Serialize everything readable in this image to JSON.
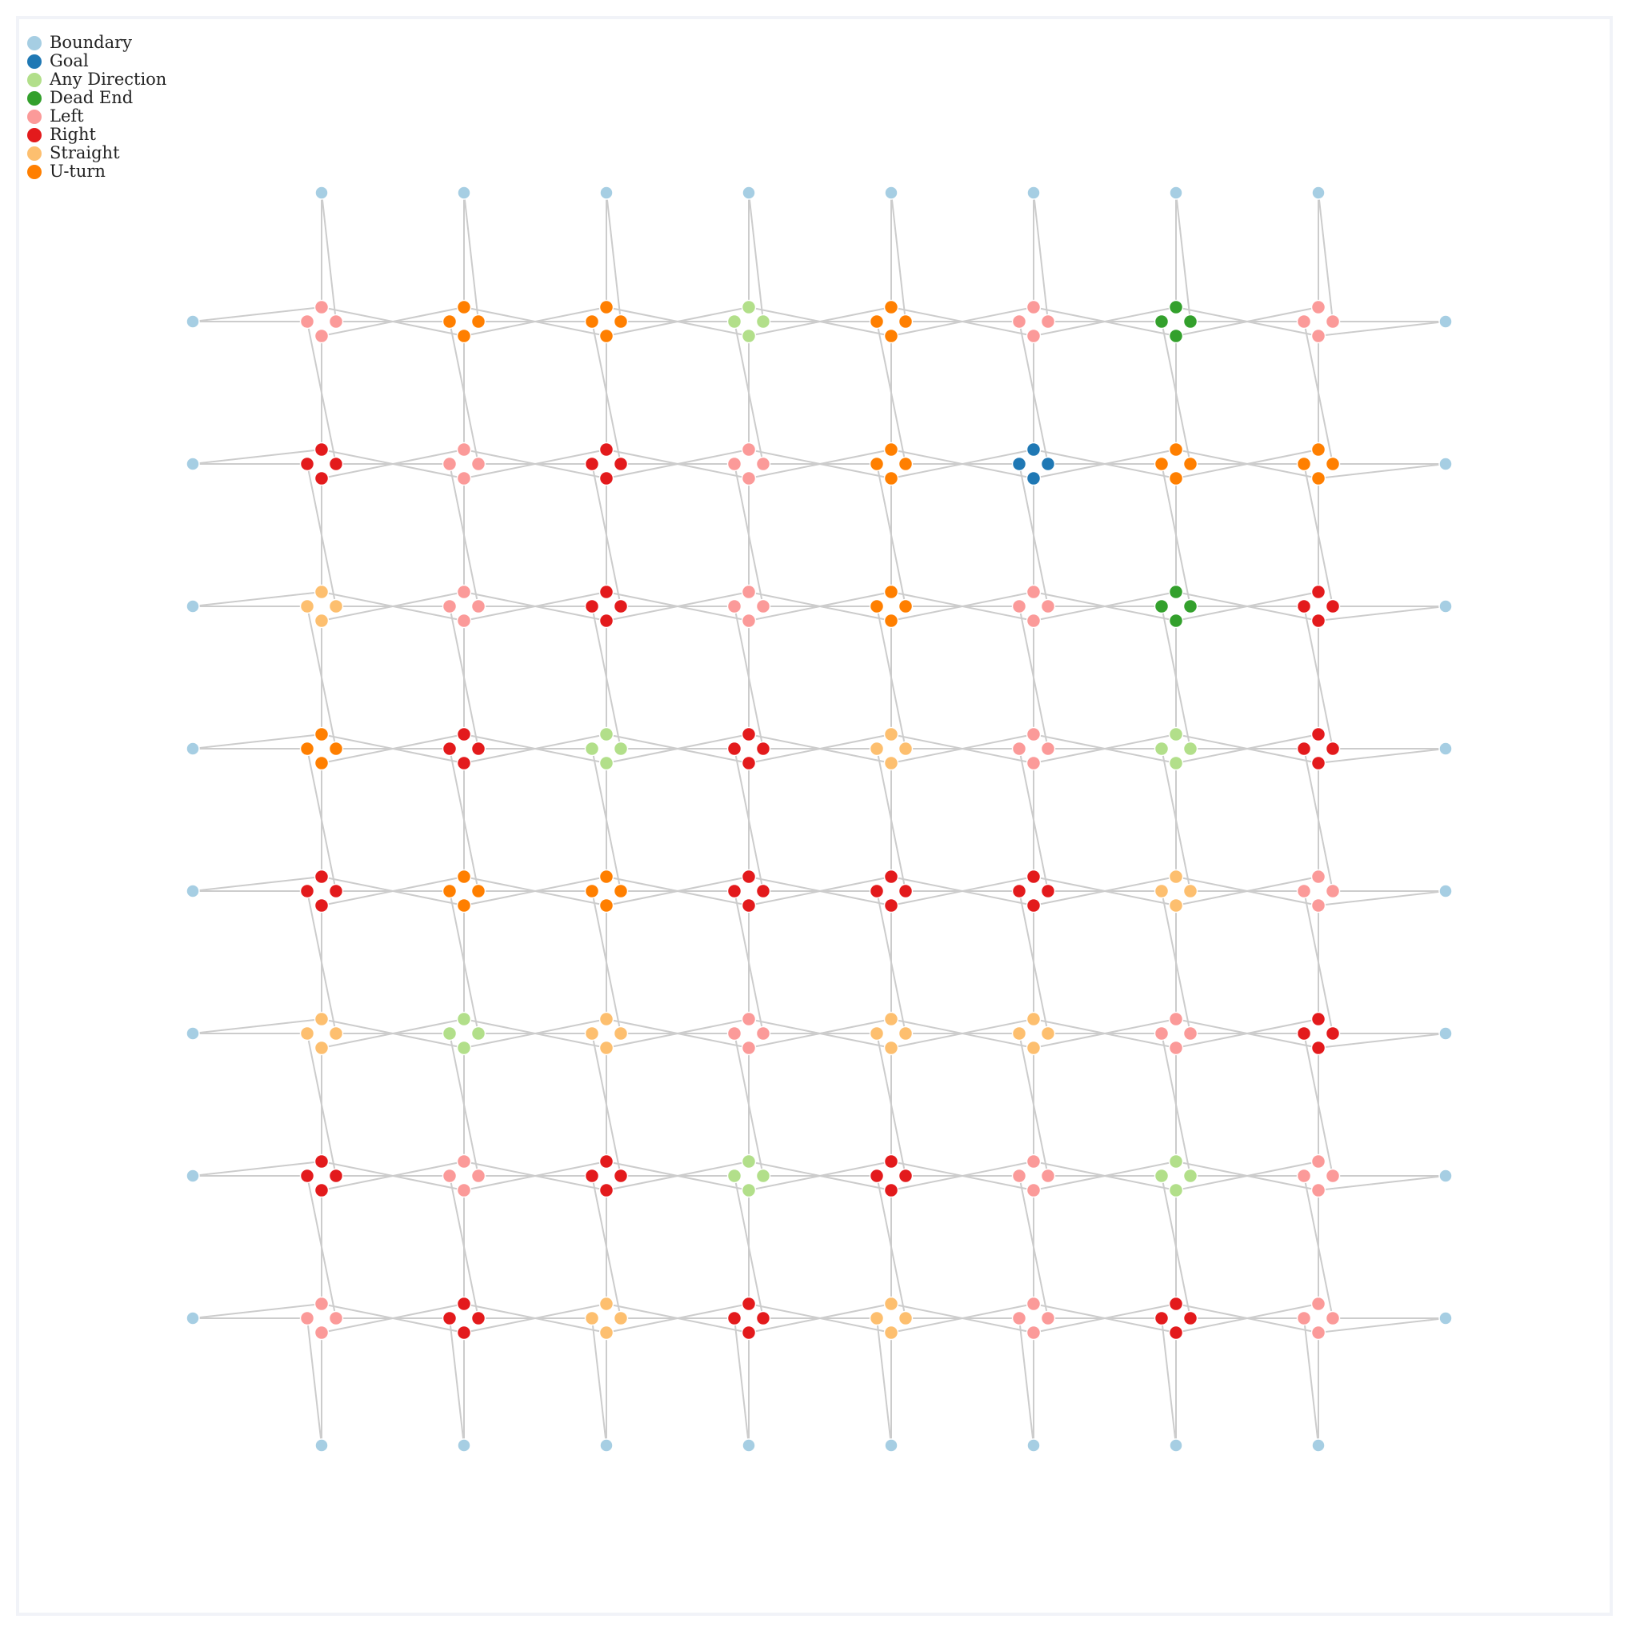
{
  "legend": [
    {
      "key": "boundary",
      "label": "Boundary",
      "color": "#a6cee3"
    },
    {
      "key": "goal",
      "label": "Goal",
      "color": "#1f78b4"
    },
    {
      "key": "any",
      "label": "Any Direction",
      "color": "#b2df8a"
    },
    {
      "key": "deadend",
      "label": "Dead End",
      "color": "#33a02c"
    },
    {
      "key": "left",
      "label": "Left",
      "color": "#fb9a99"
    },
    {
      "key": "right",
      "label": "Right",
      "color": "#e31a1c"
    },
    {
      "key": "straight",
      "label": "Straight",
      "color": "#fdbf6f"
    },
    {
      "key": "uturn",
      "label": "U-turn",
      "color": "#ff7f00"
    }
  ],
  "edge_color": "#cccccc",
  "grid": {
    "rows": 8,
    "cols": 8,
    "cell_types": [
      [
        "left",
        "uturn",
        "uturn",
        "any",
        "uturn",
        "left",
        "deadend",
        "left"
      ],
      [
        "right",
        "left",
        "right",
        "left",
        "uturn",
        "goal",
        "uturn",
        "uturn"
      ],
      [
        "straight",
        "left",
        "right",
        "left",
        "uturn",
        "left",
        "deadend",
        "right"
      ],
      [
        "uturn",
        "right",
        "any",
        "right",
        "straight",
        "left",
        "any",
        "right"
      ],
      [
        "right",
        "uturn",
        "uturn",
        "right",
        "right",
        "right",
        "straight",
        "left"
      ],
      [
        "straight",
        "any",
        "straight",
        "left",
        "straight",
        "straight",
        "left",
        "right"
      ],
      [
        "right",
        "left",
        "right",
        "any",
        "right",
        "left",
        "any",
        "left"
      ],
      [
        "left",
        "right",
        "straight",
        "right",
        "straight",
        "left",
        "right",
        "left"
      ]
    ]
  }
}
